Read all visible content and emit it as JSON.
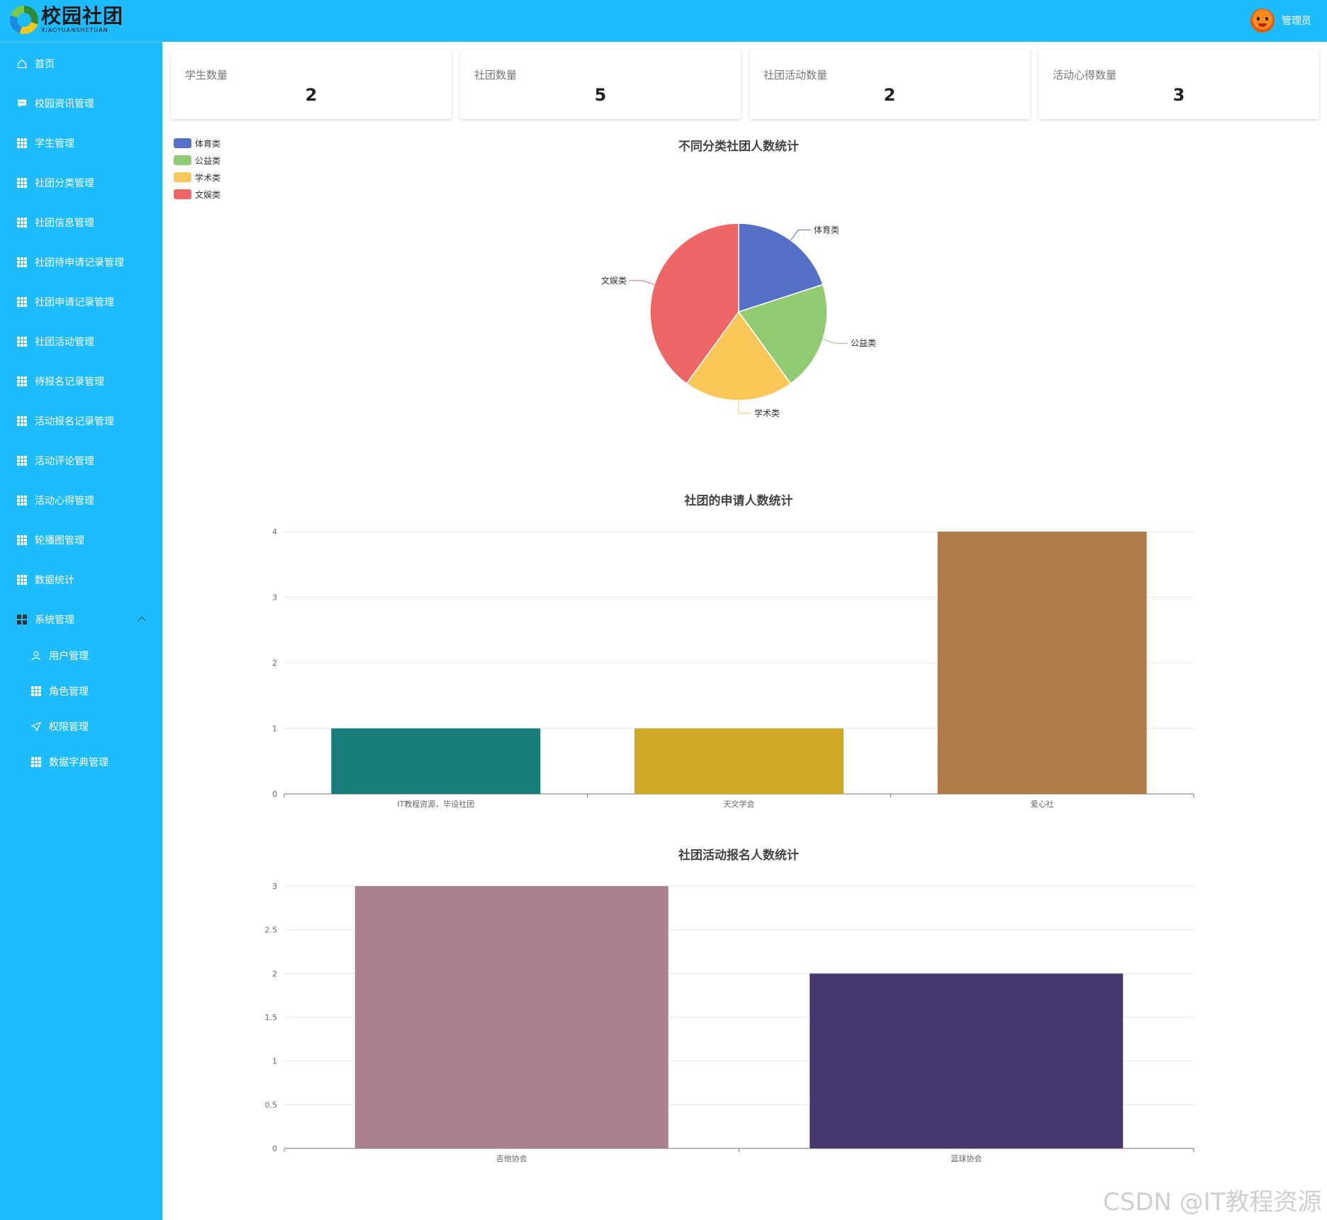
{
  "header": {
    "logo_title": "校园社团",
    "logo_subtitle": "XIAOYUANSHETUAN",
    "user_name": "管理员"
  },
  "sidebar": {
    "items": [
      {
        "label": "首页",
        "icon": "home-icon"
      },
      {
        "label": "校园资讯管理",
        "icon": "message-icon"
      },
      {
        "label": "学生管理",
        "icon": "grid-icon"
      },
      {
        "label": "社团分类管理",
        "icon": "grid-icon"
      },
      {
        "label": "社团信息管理",
        "icon": "grid-icon"
      },
      {
        "label": "社团待申请记录管理",
        "icon": "grid-icon"
      },
      {
        "label": "社团申请记录管理",
        "icon": "grid-icon"
      },
      {
        "label": "社团活动管理",
        "icon": "grid-icon"
      },
      {
        "label": "待报名记录管理",
        "icon": "grid-icon"
      },
      {
        "label": "活动报名记录管理",
        "icon": "grid-icon"
      },
      {
        "label": "活动评论管理",
        "icon": "grid-icon"
      },
      {
        "label": "活动心得管理",
        "icon": "grid-icon"
      },
      {
        "label": "轮播图管理",
        "icon": "grid-icon"
      },
      {
        "label": "数据统计",
        "icon": "grid-icon"
      },
      {
        "label": "系统管理",
        "icon": "system-icon"
      }
    ],
    "sub_items": [
      {
        "label": "用户管理",
        "icon": "user-icon"
      },
      {
        "label": "角色管理",
        "icon": "grid-icon"
      },
      {
        "label": "权限管理",
        "icon": "send-icon"
      },
      {
        "label": "数据字典管理",
        "icon": "grid-icon"
      }
    ]
  },
  "stats": [
    {
      "label": "学生数量",
      "value": "2"
    },
    {
      "label": "社团数量",
      "value": "5"
    },
    {
      "label": "社团活动数量",
      "value": "2"
    },
    {
      "label": "活动心得数量",
      "value": "3"
    }
  ],
  "chart_data": [
    {
      "type": "pie",
      "title": "不同分类社团人数统计",
      "legend_position": "top-left",
      "categories": [
        "体育类",
        "公益类",
        "学术类",
        "文娱类"
      ],
      "values": [
        1,
        1,
        1,
        2
      ],
      "colors": [
        "#5470c6",
        "#91cc75",
        "#fac858",
        "#ee6666"
      ]
    },
    {
      "type": "bar",
      "title": "社团的申请人数统计",
      "categories": [
        "IT教程资源，毕设社团",
        "天文学会",
        "爱心社"
      ],
      "values": [
        1,
        1,
        4
      ],
      "colors": [
        "#177d7b",
        "#cfa923",
        "#b07b44"
      ],
      "ylim": [
        0,
        4
      ],
      "yticks": [
        "0",
        "1",
        "2",
        "3",
        "4"
      ],
      "grid": true
    },
    {
      "type": "bar",
      "title": "社团活动报名人数统计",
      "categories": [
        "吉他协会",
        "篮球协会"
      ],
      "values": [
        3,
        2
      ],
      "colors": [
        "#ab8190",
        "#47386f"
      ],
      "ylim": [
        0,
        3
      ],
      "yticks": [
        "0",
        "0.5",
        "1",
        "1.5",
        "2",
        "2.5",
        "3"
      ],
      "grid": true
    }
  ],
  "watermark": "CSDN @IT教程资源"
}
